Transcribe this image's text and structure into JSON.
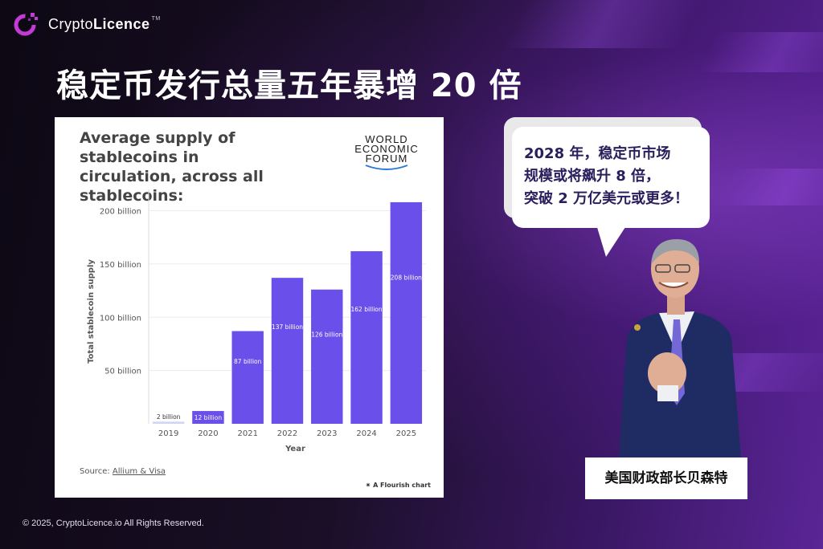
{
  "brand": {
    "name_light": "Crypto",
    "name_bold": "Licence",
    "tm": "TM"
  },
  "headline": "稳定币发行总量五年暴增 20 倍",
  "chart_card": {
    "title_line1": "Average supply of stablecoins in",
    "title_line2": "circulation, across all stablecoins:",
    "publisher": [
      "WORLD",
      "ECONOMIC",
      "FORUM"
    ],
    "source_prefix": "Source: ",
    "source_link": "Allium & Visa",
    "credit": "✷ A Flourish chart"
  },
  "chart_data": {
    "type": "bar",
    "categories": [
      "2019",
      "2020",
      "2021",
      "2022",
      "2023",
      "2024",
      "2025"
    ],
    "values": [
      2,
      12,
      87,
      137,
      126,
      162,
      208
    ],
    "data_labels": [
      "2 billion",
      "12 billion",
      "87 billion",
      "137 billion",
      "126 billion",
      "162 billion",
      "208 billion"
    ],
    "xlabel": "Year",
    "ylabel": "Total stablecoin supply",
    "ylim": [
      0,
      220
    ],
    "yticks": [
      50,
      100,
      150,
      200
    ],
    "ytick_labels": [
      "50 billion",
      "100 billion",
      "150 billion",
      "200 billion"
    ],
    "grid": true,
    "colors": {
      "bar": "#6a4fea",
      "bar_small": "#d2d6f6"
    }
  },
  "bubble": {
    "lines": [
      "2028 年，稳定币市场",
      "规模或将飙升 8 倍，",
      "突破 2 万亿美元或更多！"
    ]
  },
  "speaker_caption": "美国财政部长贝森特",
  "footer": "© 2025, CryptoLicence.io All Rights Reserved.",
  "colors": {
    "accent": "#c23bd4",
    "bubble_text": "#2a1e5c",
    "background": "#120a1c"
  }
}
